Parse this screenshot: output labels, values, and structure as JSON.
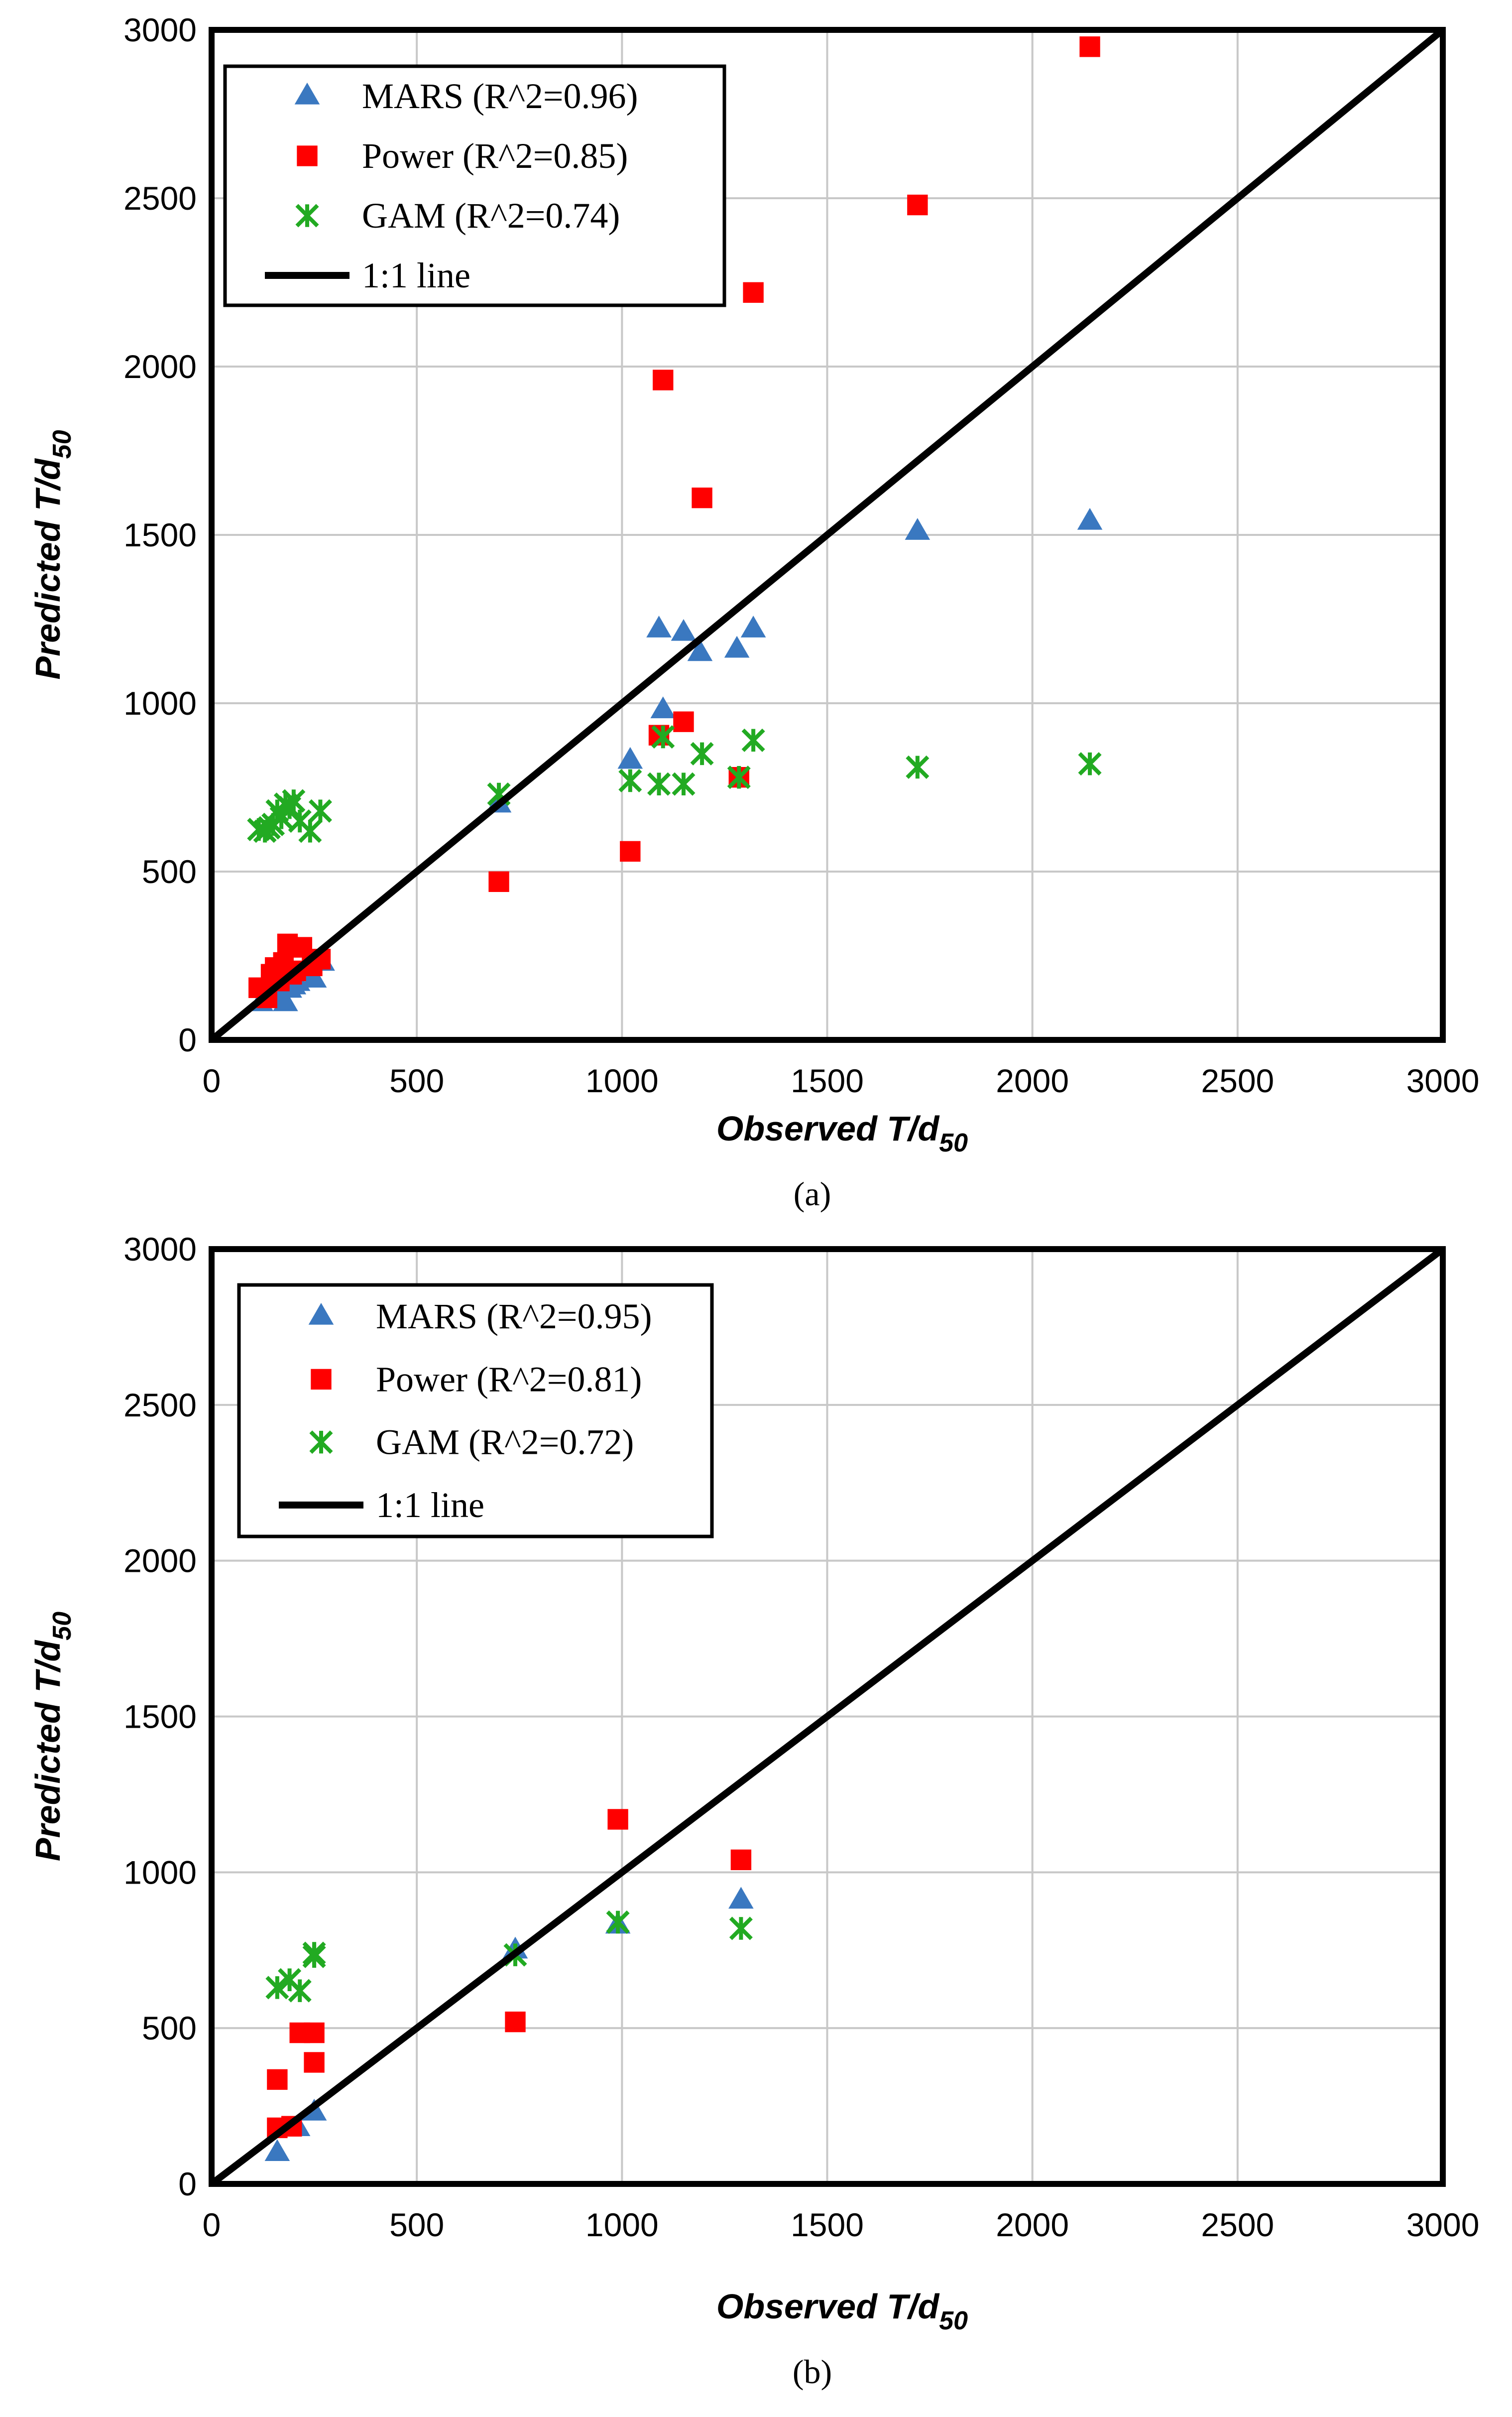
{
  "chart_data": [
    {
      "type": "scatter",
      "caption": "(a)",
      "xlabel": "Observed T/d",
      "xlabel_sub": "50",
      "ylabel": "Predicted T/d",
      "ylabel_sub": "50",
      "xlim": [
        0,
        3000
      ],
      "ylim": [
        0,
        3000
      ],
      "xticks": [
        0,
        500,
        1000,
        1500,
        2000,
        2500,
        3000
      ],
      "yticks": [
        0,
        500,
        1000,
        1500,
        2000,
        2500,
        3000
      ],
      "grid": true,
      "legend_position": "top-left",
      "reference_line": {
        "name": "1:1 line",
        "from": [
          0,
          0
        ],
        "to": [
          3000,
          3000
        ],
        "color": "#000000"
      },
      "series": [
        {
          "name": "MARS (R^2=0.96)",
          "marker": "triangle",
          "color": "#3a78c0",
          "points": [
            [
              120,
              110
            ],
            [
              140,
              120
            ],
            [
              150,
              130
            ],
            [
              160,
              140
            ],
            [
              170,
              120
            ],
            [
              180,
              110
            ],
            [
              190,
              150
            ],
            [
              200,
              160
            ],
            [
              210,
              170
            ],
            [
              230,
              200
            ],
            [
              250,
              180
            ],
            [
              270,
              230
            ],
            [
              700,
              700
            ],
            [
              1020,
              830
            ],
            [
              1090,
              1220
            ],
            [
              1100,
              980
            ],
            [
              1150,
              1210
            ],
            [
              1190,
              1150
            ],
            [
              1280,
              1160
            ],
            [
              1320,
              1220
            ],
            [
              1720,
              1510
            ],
            [
              2140,
              1540
            ]
          ]
        },
        {
          "name": "Power (R^2=0.85)",
          "marker": "square",
          "color": "#ff0000",
          "points": [
            [
              115,
              155
            ],
            [
              135,
              125
            ],
            [
              145,
              195
            ],
            [
              155,
              215
            ],
            [
              165,
              175
            ],
            [
              175,
              230
            ],
            [
              185,
              285
            ],
            [
              195,
              195
            ],
            [
              205,
              205
            ],
            [
              220,
              275
            ],
            [
              245,
              220
            ],
            [
              265,
              240
            ],
            [
              700,
              470
            ],
            [
              1020,
              560
            ],
            [
              1090,
              905
            ],
            [
              1100,
              1960
            ],
            [
              1150,
              945
            ],
            [
              1195,
              1610
            ],
            [
              1285,
              780
            ],
            [
              1320,
              2220
            ],
            [
              1720,
              2480
            ],
            [
              2140,
              2950
            ]
          ]
        },
        {
          "name": "GAM (R^2=0.74)",
          "marker": "asterisk",
          "color": "#22aa22",
          "points": [
            [
              115,
              625
            ],
            [
              130,
              620
            ],
            [
              140,
              630
            ],
            [
              150,
              640
            ],
            [
              160,
              680
            ],
            [
              170,
              660
            ],
            [
              180,
              700
            ],
            [
              190,
              690
            ],
            [
              200,
              710
            ],
            [
              215,
              650
            ],
            [
              240,
              620
            ],
            [
              265,
              680
            ],
            [
              700,
              730
            ],
            [
              1020,
              770
            ],
            [
              1090,
              760
            ],
            [
              1100,
              900
            ],
            [
              1150,
              760
            ],
            [
              1195,
              850
            ],
            [
              1285,
              780
            ],
            [
              1320,
              890
            ],
            [
              1720,
              810
            ],
            [
              2140,
              820
            ]
          ]
        }
      ]
    },
    {
      "type": "scatter",
      "caption": "(b)",
      "xlabel": "Observed T/d",
      "xlabel_sub": "50",
      "ylabel": "Predicted T/d",
      "ylabel_sub": "50",
      "xlim": [
        0,
        3000
      ],
      "ylim": [
        0,
        3000
      ],
      "xticks": [
        0,
        500,
        1000,
        1500,
        2000,
        2500,
        3000
      ],
      "yticks": [
        0,
        500,
        1000,
        1500,
        2000,
        2500,
        3000
      ],
      "grid": true,
      "legend_position": "top-left",
      "reference_line": {
        "name": "1:1 line",
        "from": [
          0,
          0
        ],
        "to": [
          3000,
          3000
        ],
        "color": "#000000"
      },
      "series": [
        {
          "name": "MARS (R^2=0.95)",
          "marker": "triangle",
          "color": "#3a78c0",
          "points": [
            [
              160,
              100
            ],
            [
              210,
              180
            ],
            [
              250,
              230
            ],
            [
              740,
              750
            ],
            [
              990,
              830
            ],
            [
              1290,
              910
            ]
          ]
        },
        {
          "name": "Power (R^2=0.81)",
          "marker": "square",
          "color": "#ff0000",
          "points": [
            [
              160,
              180
            ],
            [
              160,
              335
            ],
            [
              195,
              185
            ],
            [
              215,
              485
            ],
            [
              250,
              485
            ],
            [
              250,
              390
            ],
            [
              740,
              520
            ],
            [
              990,
              1170
            ],
            [
              1290,
              1040
            ]
          ]
        },
        {
          "name": "GAM (R^2=0.72)",
          "marker": "asterisk",
          "color": "#22aa22",
          "points": [
            [
              160,
              630
            ],
            [
              190,
              655
            ],
            [
              215,
              620
            ],
            [
              250,
              730
            ],
            [
              250,
              740
            ],
            [
              740,
              735
            ],
            [
              990,
              840
            ],
            [
              1290,
              820
            ]
          ]
        }
      ]
    }
  ]
}
